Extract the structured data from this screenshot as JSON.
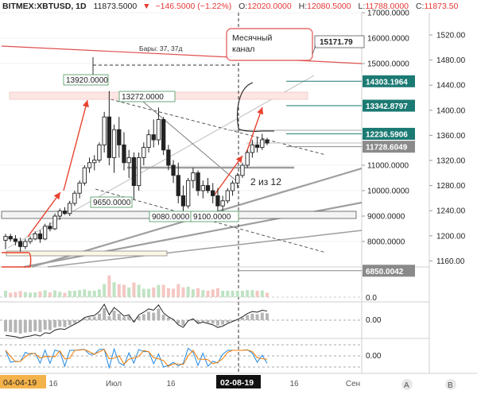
{
  "header": {
    "symbol": "BITMEX:XBTUSD, 1D",
    "last": "11873.5000",
    "arrow": "▼",
    "change": "−146.5000 (−1.22%)",
    "o_label": "O:",
    "o_value": "12020.0000",
    "h_label": "H:",
    "h_value": "12080.5000",
    "l_label": "L:",
    "l_value": "11788.0000",
    "c_label": "C:",
    "c_value": "11873.50"
  },
  "colors": {
    "up": "#26a69a",
    "down": "#ef5350",
    "candle_body": "#222222",
    "teal_label": "#1b7a73",
    "gray_label": "#8a8a8a",
    "arrow_red": "#e8432f",
    "date_badge": "#f4b24a"
  },
  "chart_data": {
    "type": "candlestick",
    "ylim": [
      7000,
      17000
    ],
    "right_axis_ticks": [
      "1520.00",
      "1480.00",
      "1440.00",
      "1400.00",
      "1360.00",
      "1320.00",
      "1280.00",
      "1240.00",
      "1200.00",
      "1160.00"
    ],
    "price_ticks": [
      {
        "label": "17000.0000",
        "value": 17000
      },
      {
        "label": "16000.0000",
        "value": 16000
      },
      {
        "label": "15000.0000",
        "value": 15000
      },
      {
        "label": "11000.0000",
        "value": 11000
      },
      {
        "label": "10000.0000",
        "value": 10000
      },
      {
        "label": "9000.0000",
        "value": 9000
      },
      {
        "label": "8000.0000",
        "value": 8000
      }
    ],
    "price_labels": [
      {
        "text": "14303.1964",
        "value": 14303.1964,
        "style": "teal"
      },
      {
        "text": "13342.8797",
        "value": 13342.8797,
        "style": "teal"
      },
      {
        "text": "12236.5906",
        "value": 12236.5906,
        "style": "teal"
      },
      {
        "text": "11728.6049",
        "value": 11728.6049,
        "style": "gray"
      },
      {
        "text": "6850.0042",
        "value": 6850.0042,
        "style": "gray"
      }
    ],
    "top_price_label": "15171.79",
    "annotations": [
      {
        "text": "13920.0000",
        "value": 13920
      },
      {
        "text": "13272.0000",
        "value": 13272
      },
      {
        "text": "9650.0000",
        "value": 9650
      },
      {
        "text": "9080.0000",
        "value": 9080
      },
      {
        "text": "9100.0000",
        "value": 9100
      }
    ],
    "callout": {
      "line1": "Месячный",
      "line2": "канал"
    },
    "bars_label": "Бары: 37, 37д",
    "count_label": "2 из 12",
    "x_labels": [
      "16",
      "Июл",
      "16",
      "02-08-19",
      "16",
      "Сен"
    ],
    "date_badge_left": "04-04-19",
    "date_badge_right": "02-08-19",
    "indicator_values": [
      "0.0",
      "0.00",
      "0.00"
    ],
    "bottom_buttons": [
      "A",
      "B"
    ],
    "candles": [
      {
        "o": 8050,
        "h": 8300,
        "l": 7700,
        "c": 8200
      },
      {
        "o": 8200,
        "h": 8300,
        "l": 8000,
        "c": 8100
      },
      {
        "o": 8100,
        "h": 8250,
        "l": 7850,
        "c": 8000
      },
      {
        "o": 8000,
        "h": 8150,
        "l": 7600,
        "c": 7800
      },
      {
        "o": 7800,
        "h": 8100,
        "l": 7700,
        "c": 8000
      },
      {
        "o": 8000,
        "h": 8200,
        "l": 7900,
        "c": 8100
      },
      {
        "o": 8100,
        "h": 8400,
        "l": 8050,
        "c": 8300
      },
      {
        "o": 8300,
        "h": 8450,
        "l": 7950,
        "c": 8100
      },
      {
        "o": 8100,
        "h": 8700,
        "l": 8050,
        "c": 8600
      },
      {
        "o": 8600,
        "h": 8750,
        "l": 8400,
        "c": 8500
      },
      {
        "o": 8500,
        "h": 9100,
        "l": 8450,
        "c": 9000
      },
      {
        "o": 9000,
        "h": 9300,
        "l": 8850,
        "c": 9200
      },
      {
        "o": 9200,
        "h": 9350,
        "l": 9050,
        "c": 9100
      },
      {
        "o": 9100,
        "h": 9600,
        "l": 9000,
        "c": 9500
      },
      {
        "o": 9500,
        "h": 10000,
        "l": 9400,
        "c": 9900
      },
      {
        "o": 9900,
        "h": 10400,
        "l": 9700,
        "c": 10300
      },
      {
        "o": 10300,
        "h": 11000,
        "l": 10200,
        "c": 10900
      },
      {
        "o": 10900,
        "h": 11300,
        "l": 10700,
        "c": 11100
      },
      {
        "o": 11100,
        "h": 11400,
        "l": 10800,
        "c": 11200
      },
      {
        "o": 11200,
        "h": 11900,
        "l": 11100,
        "c": 11800
      },
      {
        "o": 11800,
        "h": 13100,
        "l": 11500,
        "c": 12900
      },
      {
        "o": 12900,
        "h": 13920,
        "l": 11000,
        "c": 11300
      },
      {
        "o": 11300,
        "h": 12600,
        "l": 10700,
        "c": 12400
      },
      {
        "o": 12400,
        "h": 12900,
        "l": 11300,
        "c": 11800
      },
      {
        "o": 11800,
        "h": 12300,
        "l": 10800,
        "c": 11100
      },
      {
        "o": 11100,
        "h": 11600,
        "l": 10500,
        "c": 11300
      },
      {
        "o": 11300,
        "h": 11500,
        "l": 9650,
        "c": 10200
      },
      {
        "o": 10200,
        "h": 11500,
        "l": 10000,
        "c": 11300
      },
      {
        "o": 11300,
        "h": 11900,
        "l": 11000,
        "c": 11700
      },
      {
        "o": 11700,
        "h": 12400,
        "l": 11500,
        "c": 12200
      },
      {
        "o": 12200,
        "h": 12800,
        "l": 11700,
        "c": 12000
      },
      {
        "o": 12000,
        "h": 13272,
        "l": 11800,
        "c": 12800
      },
      {
        "o": 12800,
        "h": 12900,
        "l": 11400,
        "c": 11600
      },
      {
        "o": 11600,
        "h": 11800,
        "l": 10800,
        "c": 11000
      },
      {
        "o": 11000,
        "h": 11200,
        "l": 10300,
        "c": 10600
      },
      {
        "o": 10600,
        "h": 11100,
        "l": 9500,
        "c": 9800
      },
      {
        "o": 9800,
        "h": 10200,
        "l": 9080,
        "c": 9400
      },
      {
        "o": 9400,
        "h": 10500,
        "l": 9300,
        "c": 10400
      },
      {
        "o": 10400,
        "h": 10900,
        "l": 10100,
        "c": 10700
      },
      {
        "o": 10700,
        "h": 10800,
        "l": 9800,
        "c": 10000
      },
      {
        "o": 10000,
        "h": 10400,
        "l": 9700,
        "c": 10200
      },
      {
        "o": 10200,
        "h": 10500,
        "l": 9900,
        "c": 10000
      },
      {
        "o": 10000,
        "h": 10300,
        "l": 9500,
        "c": 9800
      },
      {
        "o": 9800,
        "h": 10100,
        "l": 9100,
        "c": 9400
      },
      {
        "o": 9400,
        "h": 9800,
        "l": 9200,
        "c": 9600
      },
      {
        "o": 9600,
        "h": 10100,
        "l": 9500,
        "c": 10000
      },
      {
        "o": 10000,
        "h": 10400,
        "l": 9800,
        "c": 10300
      },
      {
        "o": 10300,
        "h": 10700,
        "l": 10100,
        "c": 10600
      },
      {
        "o": 10600,
        "h": 11100,
        "l": 10500,
        "c": 11000
      },
      {
        "o": 11000,
        "h": 11600,
        "l": 10900,
        "c": 11500
      },
      {
        "o": 11500,
        "h": 12000,
        "l": 11300,
        "c": 11800
      },
      {
        "o": 11800,
        "h": 12100,
        "l": 11500,
        "c": 11700
      },
      {
        "o": 11700,
        "h": 12236,
        "l": 11600,
        "c": 12000
      },
      {
        "o": 12000,
        "h": 12080,
        "l": 11788,
        "c": 11873
      }
    ]
  }
}
